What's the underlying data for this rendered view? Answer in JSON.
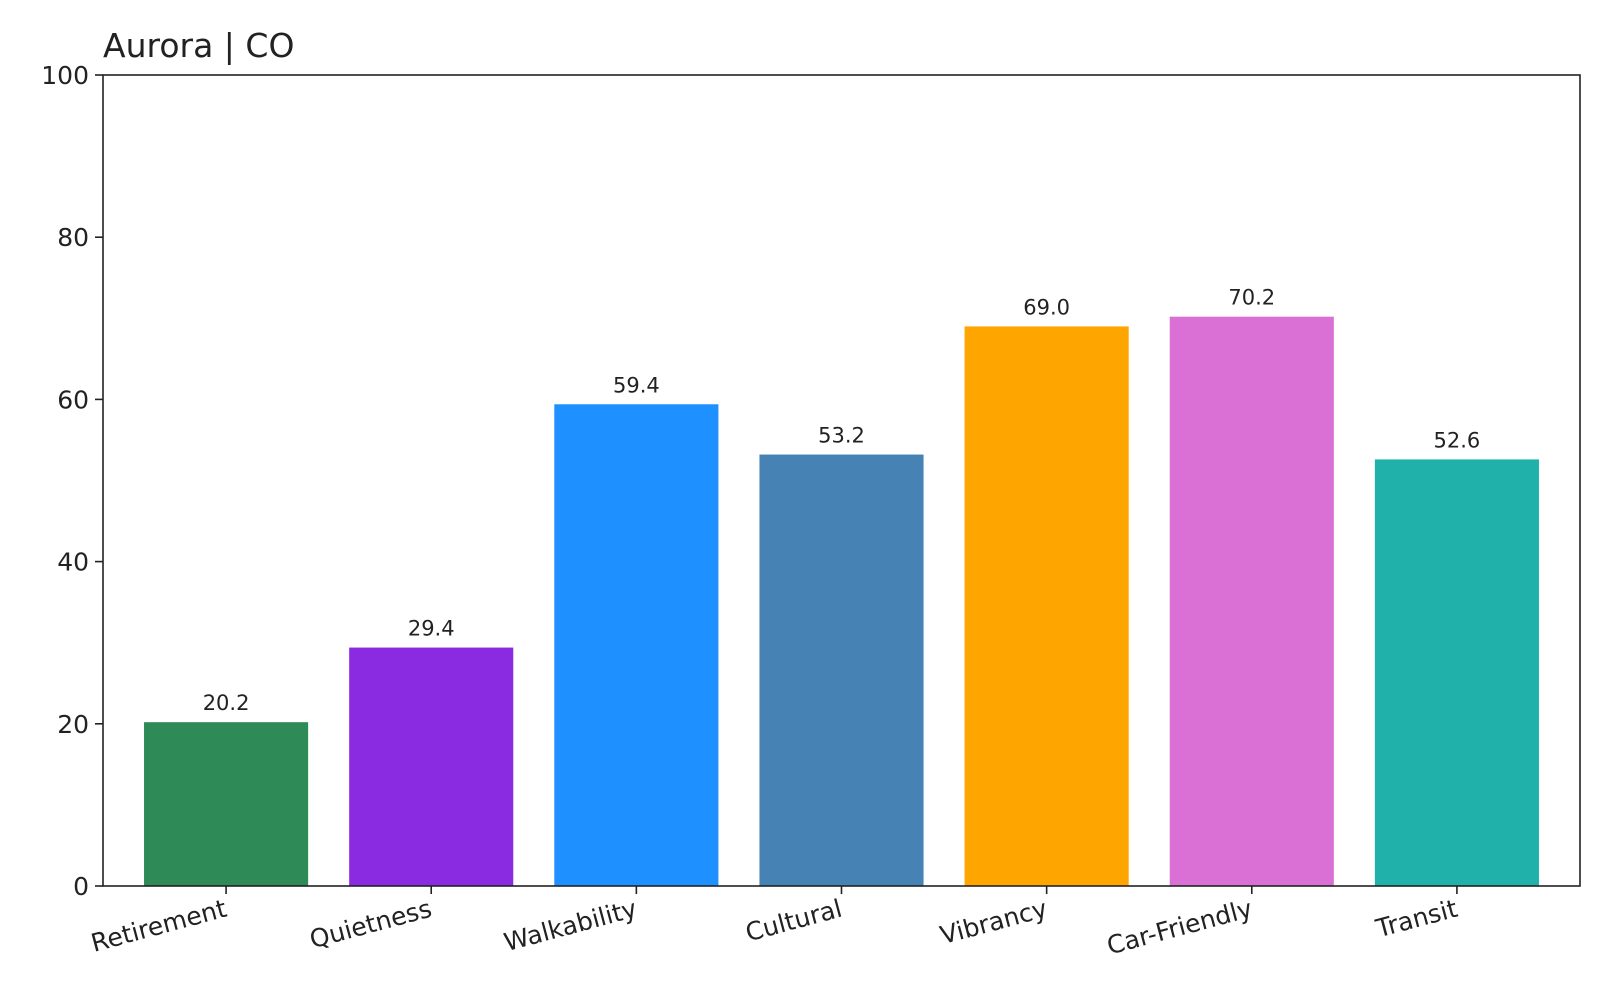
{
  "chart_data": {
    "type": "bar",
    "title": "Aurora | CO",
    "xlabel": "",
    "ylabel": "",
    "categories": [
      "Retirement",
      "Quietness",
      "Walkability",
      "Cultural",
      "Vibrancy",
      "Car-Friendly",
      "Transit"
    ],
    "values": [
      20.2,
      29.4,
      59.4,
      53.2,
      69.0,
      70.2,
      52.6
    ],
    "value_labels": [
      "20.2",
      "29.4",
      "59.4",
      "53.2",
      "69.0",
      "70.2",
      "52.6"
    ],
    "colors": [
      "#2e8b57",
      "#8a2be2",
      "#1e90ff",
      "#4682b4",
      "#ffa500",
      "#da70d6",
      "#20b2aa"
    ],
    "ylim": [
      0,
      100
    ],
    "yticks": [
      0,
      20,
      40,
      60,
      80,
      100
    ],
    "grid": false,
    "legend": "none"
  }
}
